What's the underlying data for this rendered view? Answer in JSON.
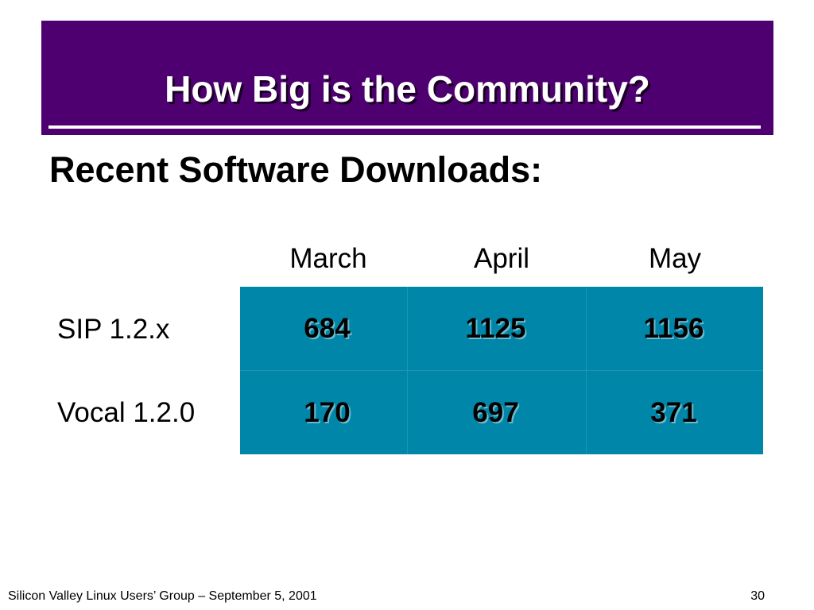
{
  "slide": {
    "title": "How Big is the Community?",
    "subtitle": "Recent Software Downloads:",
    "colors": {
      "title_background": "#4f0070",
      "table_fill": "#0086a8"
    }
  },
  "table": {
    "columns": [
      "March",
      "April",
      "May"
    ],
    "rows": [
      {
        "label": "SIP 1.2.x",
        "values": [
          "684",
          "1125",
          "1156"
        ]
      },
      {
        "label": "Vocal 1.2.0",
        "values": [
          "170",
          "697",
          "371"
        ]
      }
    ]
  },
  "footer": {
    "left_text": "Silicon Valley Linux Users’ Group – September 5, 2001",
    "page_number": "30"
  }
}
